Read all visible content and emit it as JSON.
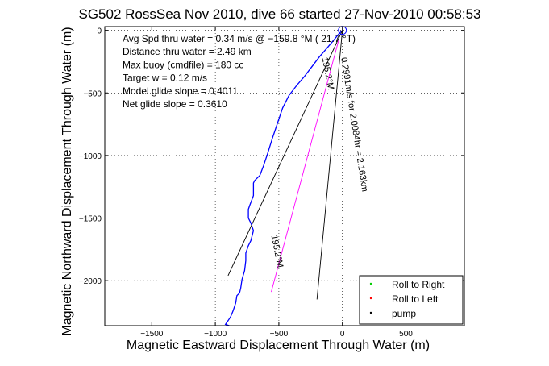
{
  "chart_data": {
    "type": "line",
    "title": "SG502 RossSea Nov 2010, dive 66 started 27-Nov-2010 00:58:53",
    "xlabel": "Magnetic Eastward Displacement Through Water (m)",
    "ylabel": "Magnetic Northward Displacement Through Water (m)",
    "xlim": [
      -1870,
      960
    ],
    "ylim": [
      -2360,
      30
    ],
    "xticks": [
      -1500,
      -1000,
      -500,
      0,
      500
    ],
    "yticks": [
      0,
      -500,
      -1000,
      -1500,
      -2000
    ],
    "grid": true,
    "stats": [
      "Avg Spd thru water =  0.34 m/s @ −159.8    °M ( 21.7 °T)",
      "Distance thru water =  2.49 km",
      "Max buoy (cmdfile) = 180 cc",
      "Target w = 0.12 m/s",
      "Model glide slope = 0.4011",
      "Net glide slope = 0.3610"
    ],
    "annotations": [
      {
        "text": "0.2991m/s for 2.0084hr = 2.163km",
        "x": -10,
        "y": -220,
        "angle": 81
      },
      {
        "text": "195.2°M",
        "x": -160,
        "y": -220,
        "angle": 79
      },
      {
        "text": "195.2°M",
        "x": -560,
        "y": -1640,
        "angle": 79
      }
    ],
    "series": [
      {
        "name": "",
        "color": "#0000ff",
        "x": [
          0,
          -30,
          -70,
          -120,
          -180,
          -240,
          -300,
          -360,
          -420,
          -470,
          -510,
          -550,
          -590,
          -620,
          -650,
          -670,
          -690,
          -700,
          -700,
          -730,
          -740,
          -740,
          -720,
          -700,
          -720,
          -740,
          -760,
          -760,
          -770,
          -790,
          -800,
          -810,
          -830,
          -840,
          -860,
          -880,
          -900,
          -920,
          -890
        ],
        "y": [
          0,
          -30,
          -80,
          -140,
          -210,
          -290,
          -370,
          -440,
          -520,
          -620,
          -740,
          -860,
          -990,
          -1080,
          -1160,
          -1180,
          -1200,
          -1220,
          -1320,
          -1400,
          -1430,
          -1500,
          -1540,
          -1600,
          -1680,
          -1720,
          -1780,
          -1840,
          -1920,
          -1990,
          -2060,
          -2100,
          -2120,
          -2180,
          -2240,
          -2290,
          -2320,
          -2350,
          -2360
        ]
      },
      {
        "name": "",
        "color": "#000000",
        "x": [
          0,
          -900
        ],
        "y": [
          0,
          -1960
        ]
      },
      {
        "name": "",
        "color": "#000000",
        "x": [
          0,
          -200
        ],
        "y": [
          0,
          -2150
        ]
      },
      {
        "name": "",
        "color": "#ff00ff",
        "x": [
          -30,
          -560
        ],
        "y": [
          -80,
          -2090
        ]
      }
    ],
    "legend": {
      "placement": "bottom-right",
      "entries": [
        {
          "label": "Roll to Right",
          "color": "#00cc00"
        },
        {
          "label": "Roll to Left",
          "color": "#ff0000"
        },
        {
          "label": "pump",
          "color": "#000000"
        }
      ]
    }
  }
}
